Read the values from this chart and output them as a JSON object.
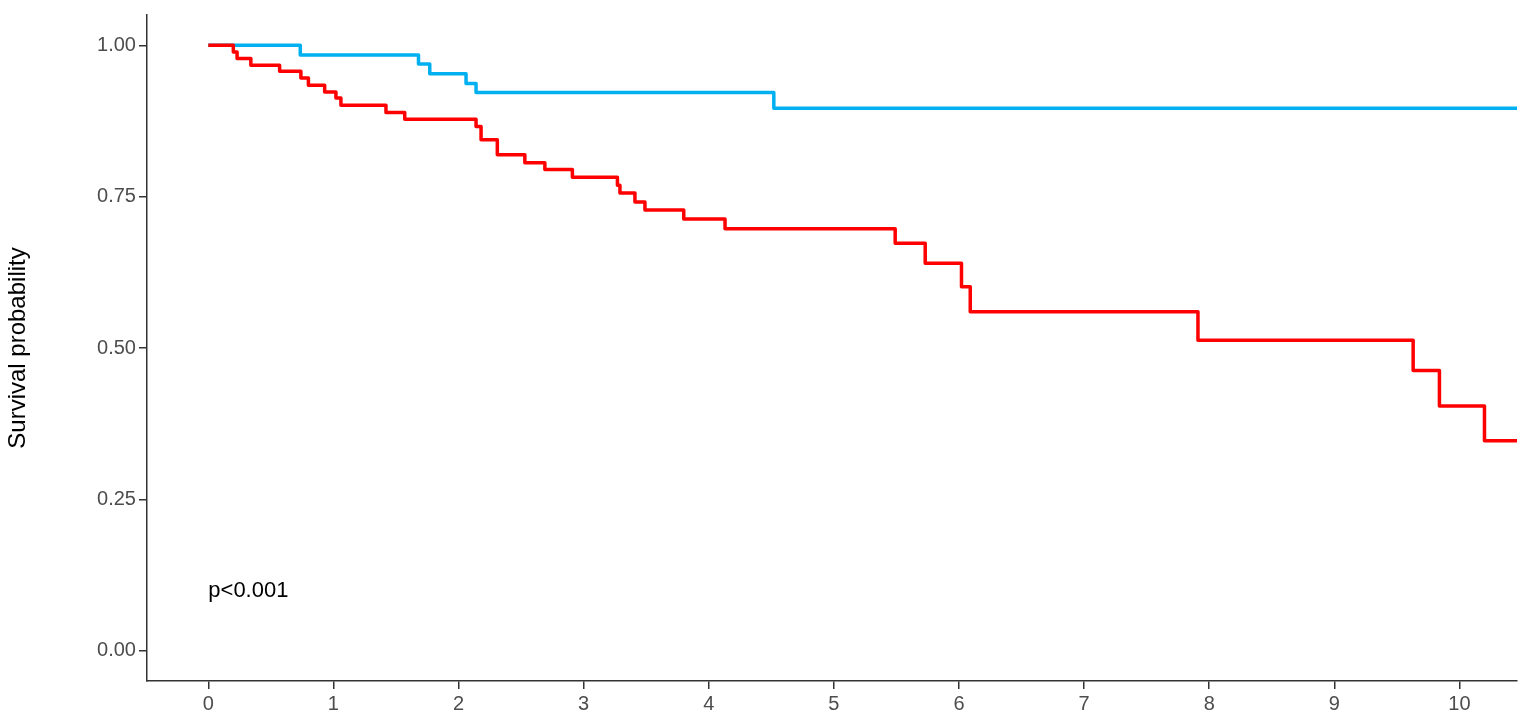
{
  "chart_data": {
    "type": "step",
    "ylabel": "Survival probability",
    "annotations": [
      "p<0.001"
    ],
    "xlim": [
      -0.49,
      10.46
    ],
    "xticks": [
      0,
      1,
      2,
      3,
      4,
      5,
      6,
      7,
      8,
      9,
      10
    ],
    "ylim": [
      -0.05,
      1.05
    ],
    "yticks": [
      {
        "value": 0,
        "label": "0.00"
      },
      {
        "value": 0.25,
        "label": "0.25"
      },
      {
        "value": 0.5,
        "label": "0.50"
      },
      {
        "value": 0.75,
        "label": "0.75"
      },
      {
        "value": 1,
        "label": "1.00"
      }
    ],
    "grid": false,
    "legend": false,
    "marker": "none",
    "line_style": "solid",
    "series": [
      {
        "color": "#00b0f0",
        "x": [
          0,
          0.735,
          1.68,
          1.77,
          2.06,
          2.14,
          4.52,
          10.46
        ],
        "values": [
          1,
          0.984,
          0.969,
          0.953,
          0.937,
          0.922,
          0.896,
          0.896
        ]
      },
      {
        "color": "#ff0000",
        "x": [
          0,
          0.2,
          0.23,
          0.34,
          0.57,
          0.74,
          0.8,
          0.93,
          1.02,
          1.06,
          1.42,
          1.57,
          2.14,
          2.18,
          2.31,
          2.53,
          2.69,
          2.91,
          3.27,
          3.29,
          3.41,
          3.49,
          3.8,
          4.13,
          5.49,
          5.73,
          6.02,
          6.09,
          7.91,
          9.63,
          9.84,
          10.2,
          10.46
        ],
        "values": [
          1,
          0.989,
          0.978,
          0.967,
          0.957,
          0.946,
          0.934,
          0.923,
          0.913,
          0.901,
          0.889,
          0.878,
          0.866,
          0.844,
          0.819,
          0.806,
          0.795,
          0.782,
          0.769,
          0.756,
          0.741,
          0.728,
          0.713,
          0.697,
          0.673,
          0.64,
          0.601,
          0.56,
          0.513,
          0.463,
          0.404,
          0.347,
          0.347
        ]
      }
    ]
  }
}
